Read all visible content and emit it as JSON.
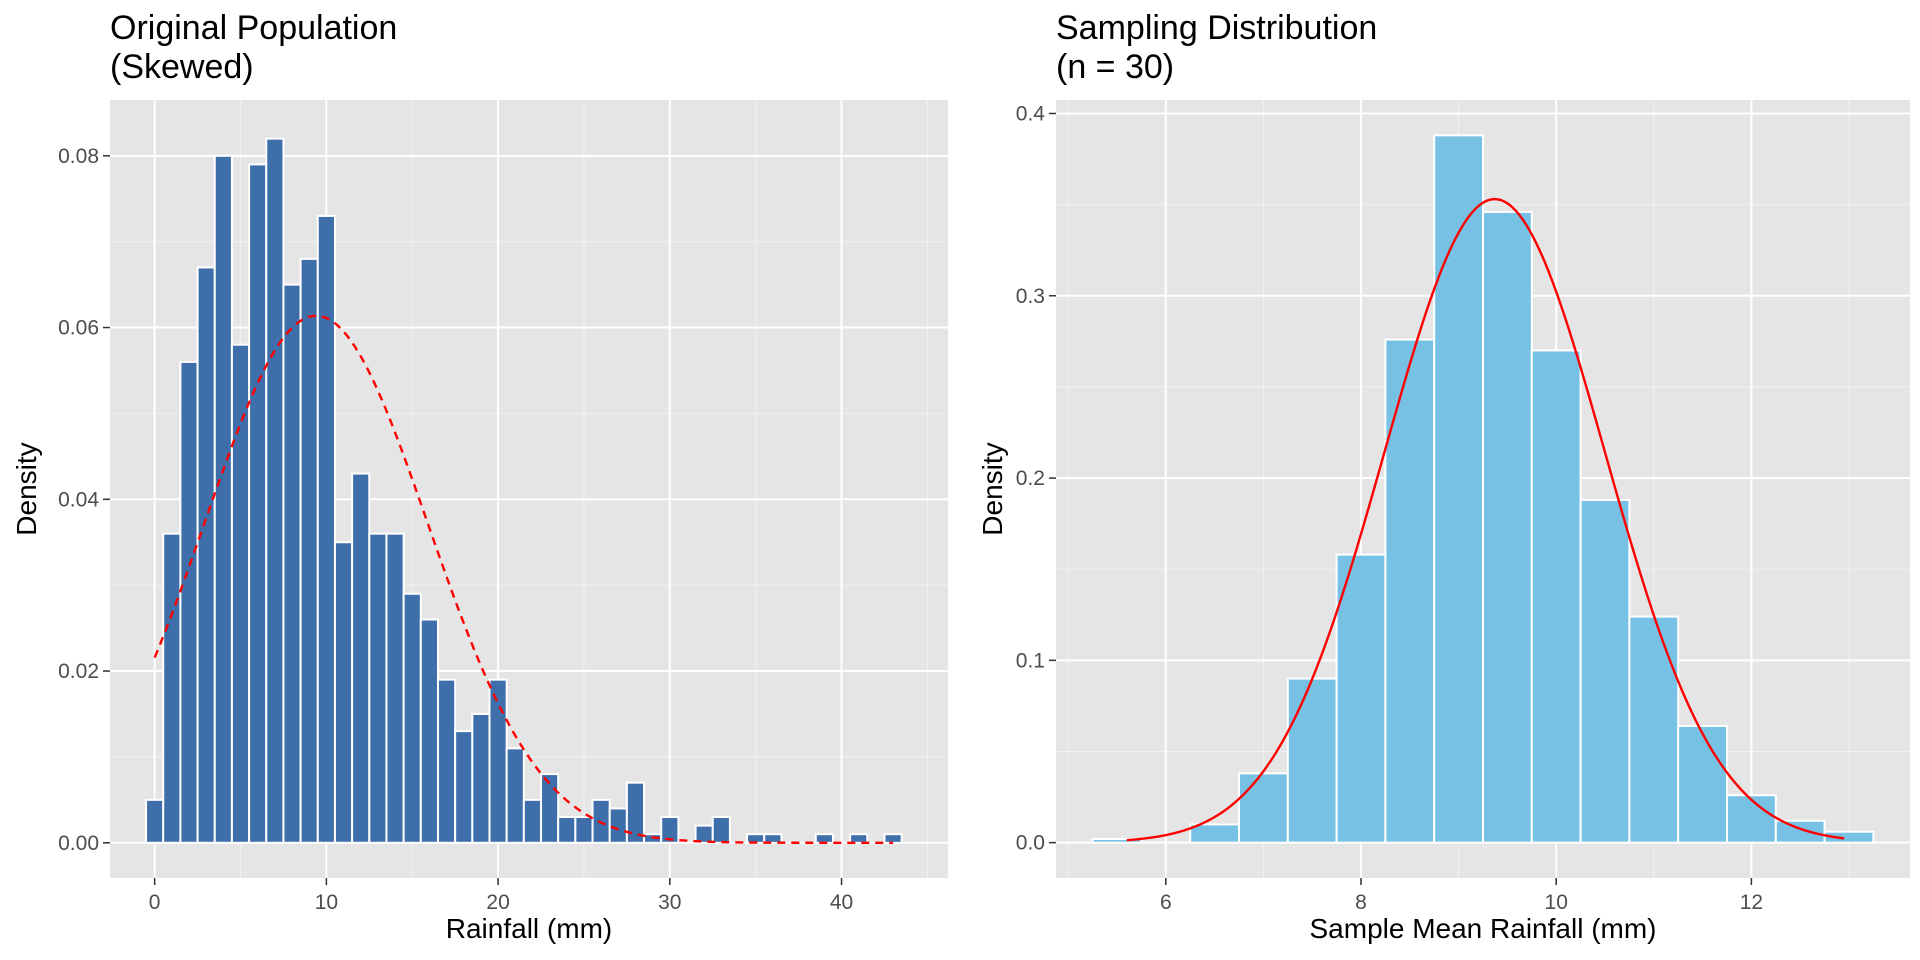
{
  "chart_data": [
    {
      "type": "bar",
      "title_lines": [
        "Original Population",
        "(Skewed)"
      ],
      "xlabel": "Rainfall (mm)",
      "ylabel": "Density",
      "xlim": [
        -2.6,
        46.2
      ],
      "ylim": [
        -0.0041,
        0.0865
      ],
      "x_ticks": [
        0,
        10,
        20,
        30,
        40
      ],
      "y_ticks": [
        0.0,
        0.02,
        0.04,
        0.06,
        0.08
      ],
      "y_tick_labels": [
        "0.00",
        "0.02",
        "0.04",
        "0.06",
        "0.08"
      ],
      "grid": true,
      "bar_color": "#3E6FAA",
      "bar_edge_color": "#ffffff",
      "bin_width": 1,
      "bin_starts": [
        -0.5,
        0.5,
        1.5,
        2.5,
        3.5,
        4.5,
        5.5,
        6.5,
        7.5,
        8.5,
        9.5,
        10.5,
        11.5,
        12.5,
        13.5,
        14.5,
        15.5,
        16.5,
        17.5,
        18.5,
        19.5,
        20.5,
        21.5,
        22.5,
        23.5,
        24.5,
        25.5,
        26.5,
        27.5,
        28.5,
        29.5,
        30.5,
        31.5,
        32.5,
        33.5,
        34.5,
        35.5,
        36.5,
        37.5,
        38.5,
        39.5,
        40.5,
        41.5,
        42.5
      ],
      "values": [
        0.005,
        0.036,
        0.056,
        0.067,
        0.08,
        0.058,
        0.079,
        0.082,
        0.065,
        0.068,
        0.073,
        0.035,
        0.043,
        0.036,
        0.036,
        0.029,
        0.026,
        0.019,
        0.013,
        0.015,
        0.019,
        0.011,
        0.005,
        0.008,
        0.003,
        0.003,
        0.005,
        0.004,
        0.007,
        0.001,
        0.003,
        0,
        0.002,
        0.003,
        0,
        0.001,
        0.001,
        0,
        0,
        0.001,
        0,
        0.001,
        0,
        0.001
      ],
      "overlay": {
        "type": "normal-density",
        "mean": 9.4,
        "sd": 6.5,
        "x_range": [
          0,
          43
        ],
        "color": "#ff0000",
        "style": "dashed"
      }
    },
    {
      "type": "bar",
      "title_lines": [
        "Sampling Distribution",
        "(n = 30)"
      ],
      "xlabel": "Sample Mean Rainfall (mm)",
      "ylabel": "Density",
      "xlim": [
        4.875,
        13.625
      ],
      "ylim": [
        -0.0194,
        0.4074
      ],
      "x_ticks": [
        6,
        8,
        10,
        12
      ],
      "y_ticks": [
        0.0,
        0.1,
        0.2,
        0.3,
        0.4
      ],
      "y_tick_labels": [
        "0.0",
        "0.1",
        "0.2",
        "0.3",
        "0.4"
      ],
      "grid": true,
      "bar_color": "#77C2E4",
      "bar_edge_color": "#ffffff",
      "bin_width": 0.5,
      "bin_starts": [
        5.25,
        5.75,
        6.25,
        6.75,
        7.25,
        7.75,
        8.25,
        8.75,
        9.25,
        9.75,
        10.25,
        10.75,
        11.25,
        11.75,
        12.25,
        12.75
      ],
      "values": [
        0.002,
        0,
        0.01,
        0.038,
        0.09,
        0.158,
        0.276,
        0.388,
        0.346,
        0.27,
        0.188,
        0.124,
        0.064,
        0.026,
        0.012,
        0.006
      ],
      "overlay": {
        "type": "normal-density",
        "mean": 9.37,
        "sd": 1.13,
        "x_range": [
          5.6,
          12.95
        ],
        "color": "#ff0000",
        "style": "solid"
      }
    }
  ]
}
